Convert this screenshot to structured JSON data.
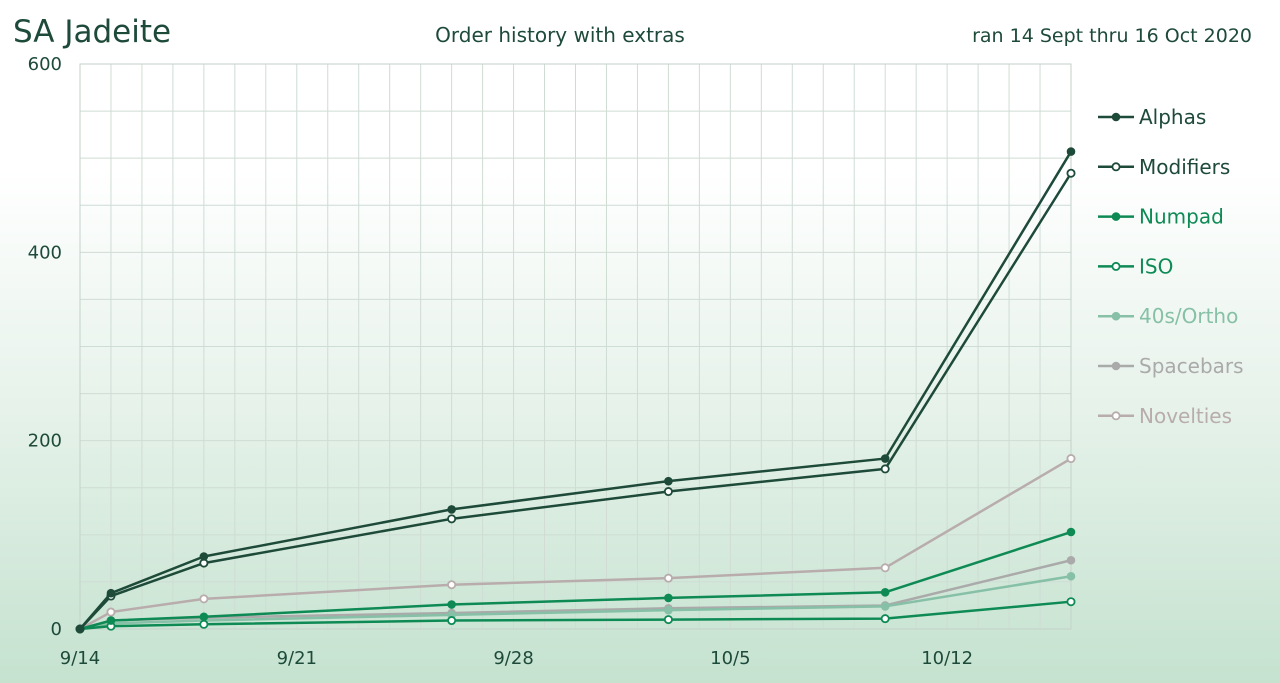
{
  "header": {
    "brand": "SA Jadeite",
    "title": "Order history with extras",
    "range": "ran 14 Sept thru 16 Oct 2020"
  },
  "chart_data": {
    "type": "line",
    "x": [
      "2020-09-14",
      "2020-09-15",
      "2020-09-18",
      "2020-09-26",
      "2020-10-03",
      "2020-10-10",
      "2020-10-16"
    ],
    "xticks": [
      {
        "date": "2020-09-14",
        "label": "9/14"
      },
      {
        "date": "2020-09-21",
        "label": "9/21"
      },
      {
        "date": "2020-09-28",
        "label": "9/28"
      },
      {
        "date": "2020-10-05",
        "label": "10/5"
      },
      {
        "date": "2020-10-12",
        "label": "10/12"
      }
    ],
    "xlim": [
      "2020-09-14",
      "2020-10-16"
    ],
    "ylim": [
      0,
      600
    ],
    "yticks": [
      0,
      200,
      400,
      600
    ],
    "grid": true,
    "legend": "right",
    "series": [
      {
        "name": "Alphas",
        "color": "#1e4a3a",
        "marker": "filled",
        "values": [
          0,
          38,
          77,
          127,
          157,
          181,
          507
        ]
      },
      {
        "name": "Modifiers",
        "color": "#1e4a3a",
        "marker": "open",
        "values": [
          0,
          35,
          70,
          117,
          146,
          170,
          484
        ]
      },
      {
        "name": "Numpad",
        "color": "#0e8a55",
        "marker": "filled",
        "values": [
          0,
          9,
          13,
          26,
          33,
          39,
          103
        ]
      },
      {
        "name": "ISO",
        "color": "#0e8a55",
        "marker": "open",
        "values": [
          0,
          3,
          5,
          9,
          10,
          11,
          29
        ]
      },
      {
        "name": "40s/Ortho",
        "color": "#86c0a6",
        "marker": "filled",
        "values": [
          0,
          6,
          9,
          15,
          20,
          24,
          56
        ]
      },
      {
        "name": "Spacebars",
        "color": "#aaaaaa",
        "marker": "filled",
        "values": [
          0,
          9,
          12,
          17,
          22,
          25,
          73
        ]
      },
      {
        "name": "Novelties",
        "color": "#b8acac",
        "marker": "open",
        "values": [
          0,
          18,
          32,
          47,
          54,
          65,
          181
        ]
      }
    ]
  }
}
